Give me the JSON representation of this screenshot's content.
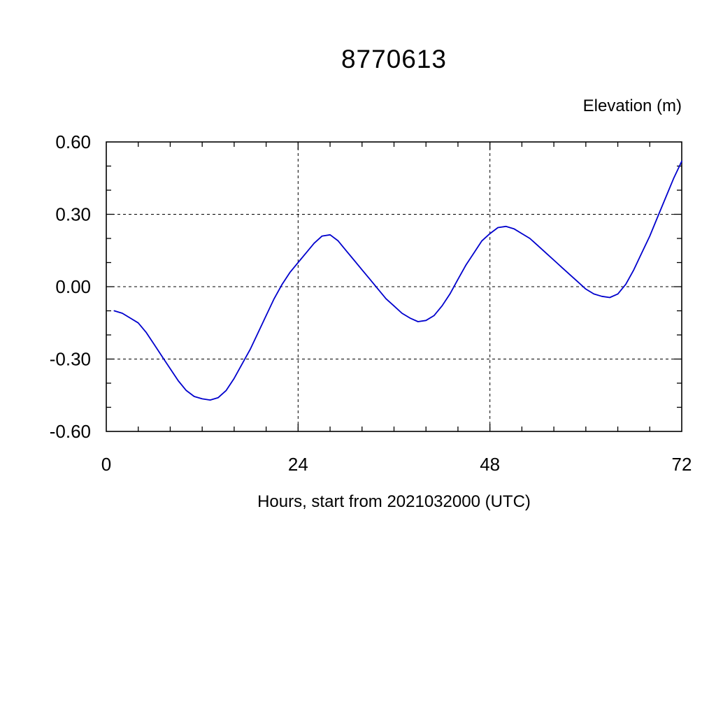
{
  "chart_data": {
    "type": "line",
    "title": "8770613",
    "ylabel": "Elevation (m)",
    "xlabel": "Hours, start from 2021032000 (UTC)",
    "xlim": [
      0,
      72
    ],
    "ylim": [
      -0.6,
      0.6
    ],
    "xticks": [
      0,
      24,
      48,
      72
    ],
    "xtick_labels": [
      "0",
      "24",
      "48",
      "72"
    ],
    "yticks": [
      -0.6,
      -0.3,
      0.0,
      0.3,
      0.6
    ],
    "ytick_labels": [
      "-0.60",
      "-0.30",
      "0.00",
      "0.30",
      "0.60"
    ],
    "x_minor_step": 4,
    "y_minor_step": 0.1,
    "grid": "dashed-at-major-ticks",
    "legend_position": "none",
    "line_color": "#0000cd",
    "frame_color": "#000000",
    "series": [
      {
        "name": "elevation",
        "x": [
          1,
          2,
          3,
          4,
          5,
          6,
          7,
          8,
          9,
          10,
          11,
          12,
          13,
          14,
          15,
          16,
          17,
          18,
          19,
          20,
          21,
          22,
          23,
          24,
          25,
          26,
          27,
          28,
          29,
          30,
          31,
          32,
          33,
          34,
          35,
          36,
          37,
          38,
          39,
          40,
          41,
          42,
          43,
          44,
          45,
          46,
          47,
          48,
          49,
          50,
          51,
          52,
          53,
          54,
          55,
          56,
          57,
          58,
          59,
          60,
          61,
          62,
          63,
          64,
          65,
          66,
          67,
          68,
          69,
          70,
          71,
          72
        ],
        "y": [
          -0.1,
          -0.11,
          -0.13,
          -0.15,
          -0.19,
          -0.24,
          -0.29,
          -0.34,
          -0.39,
          -0.43,
          -0.455,
          -0.465,
          -0.47,
          -0.46,
          -0.43,
          -0.38,
          -0.32,
          -0.26,
          -0.19,
          -0.12,
          -0.05,
          0.01,
          0.06,
          0.1,
          0.14,
          0.18,
          0.21,
          0.215,
          0.19,
          0.15,
          0.11,
          0.07,
          0.03,
          -0.01,
          -0.05,
          -0.08,
          -0.11,
          -0.13,
          -0.145,
          -0.14,
          -0.12,
          -0.08,
          -0.03,
          0.03,
          0.09,
          0.14,
          0.19,
          0.22,
          0.245,
          0.25,
          0.24,
          0.22,
          0.2,
          0.17,
          0.14,
          0.11,
          0.08,
          0.05,
          0.02,
          -0.01,
          -0.03,
          -0.04,
          -0.045,
          -0.03,
          0.01,
          0.07,
          0.14,
          0.21,
          0.29,
          0.37,
          0.45,
          0.52
        ]
      }
    ]
  }
}
